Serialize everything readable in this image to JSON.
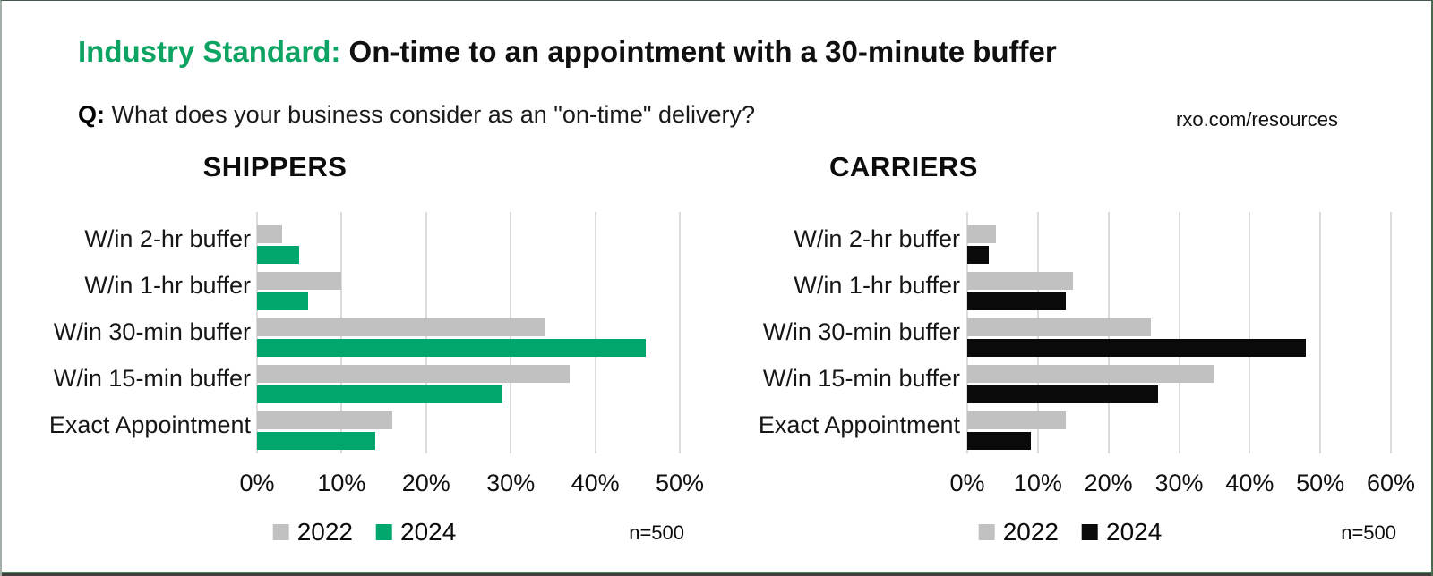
{
  "header": {
    "title_highlight": "Industry Standard:",
    "title_rest": " On-time to an appointment with a 30-minute buffer",
    "question_prefix": "Q:",
    "question_text": " What does your business consider as an \"on-time\" delivery?",
    "source_link": "rxo.com/resources"
  },
  "colors": {
    "brand_green": "#00a76d",
    "gray_2022": "#c1c1c1",
    "black_2024": "#0a0a0a",
    "title_green": "#0da463",
    "gridline": "#dcdcdc"
  },
  "chart_data": [
    {
      "type": "bar",
      "orientation": "horizontal",
      "title": "SHIPPERS",
      "categories": [
        "W/in 2-hr buffer",
        "W/in 1-hr buffer",
        "W/in 30-min buffer",
        "W/in 15-min buffer",
        "Exact Appointment"
      ],
      "series": [
        {
          "name": "2022",
          "color": "#c1c1c1",
          "values": [
            3,
            10,
            34,
            37,
            16
          ]
        },
        {
          "name": "2024",
          "color": "#00a76d",
          "values": [
            5,
            6,
            46,
            29,
            14
          ]
        }
      ],
      "xlim": [
        0,
        50
      ],
      "tick_labels": [
        "0%",
        "10%",
        "20%",
        "30%",
        "40%",
        "50%"
      ],
      "grid": true,
      "legend_position": "bottom",
      "note": "n=500"
    },
    {
      "type": "bar",
      "orientation": "horizontal",
      "title": "CARRIERS",
      "categories": [
        "W/in 2-hr buffer",
        "W/in 1-hr buffer",
        "W/in 30-min buffer",
        "W/in 15-min buffer",
        "Exact Appointment"
      ],
      "series": [
        {
          "name": "2022",
          "color": "#c1c1c1",
          "values": [
            4,
            15,
            26,
            35,
            14
          ]
        },
        {
          "name": "2024",
          "color": "#0a0a0a",
          "values": [
            3,
            14,
            48,
            27,
            9
          ]
        }
      ],
      "xlim": [
        0,
        60
      ],
      "tick_labels": [
        "0%",
        "10%",
        "20%",
        "30%",
        "40%",
        "50%",
        "60%"
      ],
      "grid": true,
      "legend_position": "bottom",
      "note": "n=500"
    }
  ]
}
